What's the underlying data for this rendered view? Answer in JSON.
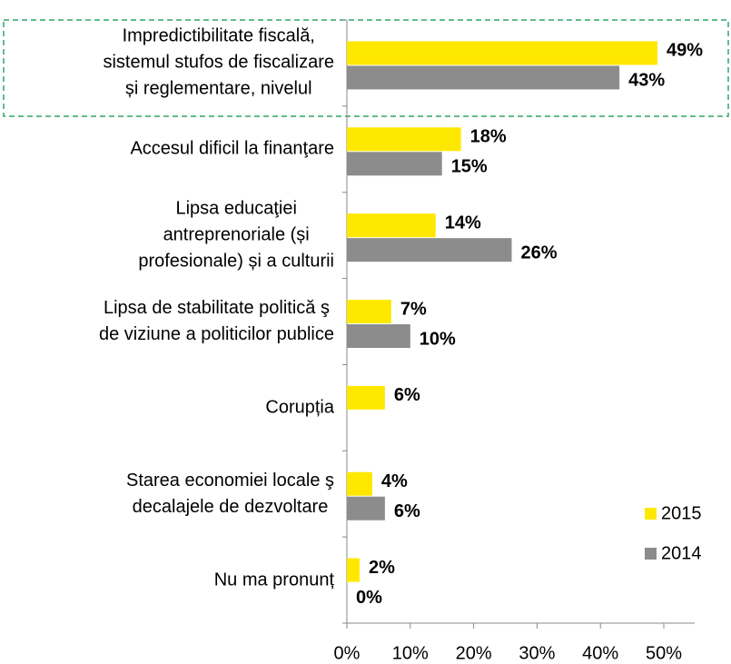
{
  "chart_data": {
    "type": "bar",
    "orientation": "horizontal",
    "categories": [
      "Impredictibilitate fiscală,\nsistemul stufos de fiscalizare\nși reglementare, nivelul",
      "Accesul dificil la finanţare",
      "Lipsa educaţiei\nantreprenoriale (și\nprofesionale) și a culturii",
      "Lipsa de stabilitate politică ş\nde viziune a politicilor publice",
      "Corupția",
      "Starea economiei locale ş\ndecalajele de dezvoltare",
      "Nu ma pronunț"
    ],
    "series": [
      {
        "name": "2015",
        "color": "#ffe800",
        "values": [
          49,
          18,
          14,
          7,
          6,
          4,
          2
        ],
        "value_labels": [
          "49%",
          "18%",
          "14%",
          "7%",
          "6%",
          "4%",
          "2%"
        ]
      },
      {
        "name": "2014",
        "color": "#8c8c8c",
        "values": [
          43,
          15,
          26,
          10,
          null,
          6,
          0
        ],
        "value_labels": [
          "43%",
          "15%",
          "26%",
          "10%",
          null,
          "6%",
          "0%"
        ]
      }
    ],
    "xlim": [
      0,
      50
    ],
    "xticks": [
      {
        "value": 0,
        "label": "0%"
      },
      {
        "value": 10,
        "label": "10%"
      },
      {
        "value": 20,
        "label": "20%"
      },
      {
        "value": 30,
        "label": "30%"
      },
      {
        "value": 40,
        "label": "40%"
      },
      {
        "value": 50,
        "label": "50%"
      }
    ],
    "legend": "lower right"
  }
}
